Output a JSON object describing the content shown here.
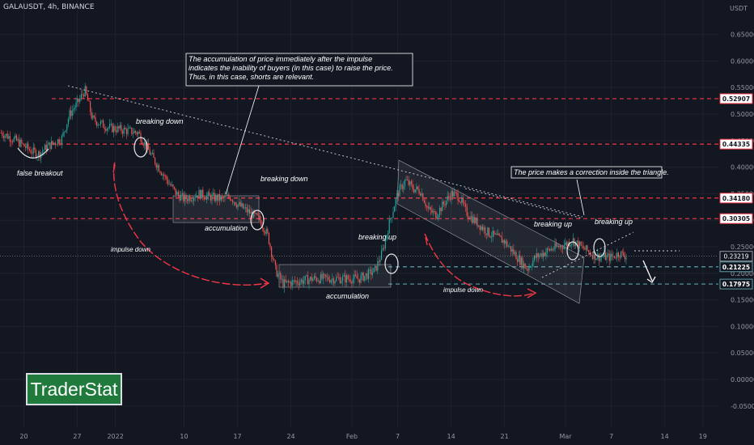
{
  "header": {
    "symbol": "GALAUSDT, 4h, BINANCE",
    "currency": "USDT"
  },
  "logo": {
    "text": "TraderStat"
  },
  "colors": {
    "background": "#131722",
    "bull": "#26a69a",
    "bear": "#ef5350",
    "resistance": "#f23645",
    "support": "#5b9ea6",
    "grid": "#1e222d",
    "text": "#d1d4dc",
    "annotation": "#ffffff"
  },
  "chart_data": {
    "type": "candlestick",
    "ylim": [
      -0.08,
      0.7
    ],
    "y_ticks": [
      "0.65000",
      "0.60000",
      "0.55000",
      "0.50000",
      "0.45000",
      "0.40000",
      "0.35000",
      "0.30000",
      "0.25000",
      "0.20000",
      "0.15000",
      "0.10000",
      "0.05000",
      "0.00000",
      "-0.05000"
    ],
    "x_ticks": [
      "20",
      "27",
      "2022",
      "10",
      "17",
      "24",
      "Feb",
      "7",
      "14",
      "21",
      "Mar",
      "7",
      "14",
      "19"
    ],
    "price_lines": [
      {
        "label": "0.52907",
        "style": "red-dashed"
      },
      {
        "label": "0.44335",
        "style": "red-dashed"
      },
      {
        "label": "0.34180",
        "style": "red-dashed"
      },
      {
        "label": "0.30305",
        "style": "red-dashed"
      },
      {
        "label": "0.21225",
        "style": "teal-dashed"
      },
      {
        "label": "0.17975",
        "style": "teal-dashed"
      }
    ],
    "last_price": "0.23219",
    "price_path": [
      [
        "2021-12-17",
        0.465
      ],
      [
        "2021-12-19",
        0.45
      ],
      [
        "2021-12-21",
        0.43
      ],
      [
        "2021-12-22",
        0.425
      ],
      [
        "2021-12-23",
        0.438
      ],
      [
        "2021-12-25",
        0.455
      ],
      [
        "2021-12-26",
        0.5
      ],
      [
        "2021-12-27",
        0.52
      ],
      [
        "2021-12-28",
        0.545
      ],
      [
        "2021-12-29",
        0.49
      ],
      [
        "2021-12-31",
        0.475
      ],
      [
        "2022-01-02",
        0.47
      ],
      [
        "2022-01-04",
        0.465
      ],
      [
        "2022-01-05",
        0.44
      ],
      [
        "2022-01-06",
        0.415
      ],
      [
        "2022-01-08",
        0.37
      ],
      [
        "2022-01-09",
        0.35
      ],
      [
        "2022-01-10",
        0.34
      ],
      [
        "2022-01-12",
        0.35
      ],
      [
        "2022-01-13",
        0.345
      ],
      [
        "2022-01-15",
        0.34
      ],
      [
        "2022-01-16",
        0.345
      ],
      [
        "2022-01-17",
        0.33
      ],
      [
        "2022-01-19",
        0.31
      ],
      [
        "2022-01-20",
        0.3
      ],
      [
        "2022-01-21",
        0.27
      ],
      [
        "2022-01-22",
        0.205
      ],
      [
        "2022-01-23",
        0.18
      ],
      [
        "2022-01-25",
        0.185
      ],
      [
        "2022-01-27",
        0.19
      ],
      [
        "2022-01-30",
        0.19
      ],
      [
        "2022-02-02",
        0.19
      ],
      [
        "2022-02-04",
        0.205
      ],
      [
        "2022-02-05",
        0.24
      ],
      [
        "2022-02-06",
        0.3
      ],
      [
        "2022-02-07",
        0.35
      ],
      [
        "2022-02-08",
        0.375
      ],
      [
        "2022-02-09",
        0.36
      ],
      [
        "2022-02-10",
        0.355
      ],
      [
        "2022-02-11",
        0.32
      ],
      [
        "2022-02-12",
        0.31
      ],
      [
        "2022-02-13",
        0.33
      ],
      [
        "2022-02-14",
        0.35
      ],
      [
        "2022-02-15",
        0.345
      ],
      [
        "2022-02-16",
        0.315
      ],
      [
        "2022-02-17",
        0.3
      ],
      [
        "2022-02-19",
        0.275
      ],
      [
        "2022-02-21",
        0.26
      ],
      [
        "2022-02-23",
        0.225
      ],
      [
        "2022-02-24",
        0.208
      ],
      [
        "2022-02-25",
        0.23
      ],
      [
        "2022-02-27",
        0.245
      ],
      [
        "2022-03-01",
        0.255
      ],
      [
        "2022-03-02",
        0.262
      ],
      [
        "2022-03-03",
        0.25
      ],
      [
        "2022-03-05",
        0.232
      ],
      [
        "2022-03-07",
        0.23
      ],
      [
        "2022-03-08",
        0.238
      ],
      [
        "2022-03-09",
        0.232
      ]
    ],
    "annotations": {
      "note_accumulation": "The accumulation of price immediately after the impulse\nindicates the inability of buyers (in this case) to raise the price.\nThus, in this case, shorts are relevant.",
      "note_triangle": "The price makes a correction inside the triangle.",
      "false_breakout": "false breakout",
      "breaking_down_1": "breaking down",
      "breaking_down_2": "breaking down",
      "accumulation_1": "accumulation",
      "accumulation_2": "accumulation",
      "breaking_up_1": "breaking up",
      "breaking_up_2": "breaking up",
      "breaking_up_3": "breaking up",
      "impulse_down_1": "impulse down",
      "impulse_down_2": "impulse down"
    }
  }
}
